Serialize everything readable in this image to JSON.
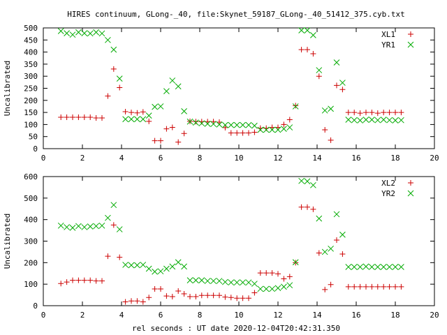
{
  "chart_data": [
    {
      "type": "scatter",
      "title": "HIRES continuum, GLong-_40, file:Skynet_59187_GLong-_40_51412_375.cyb.txt",
      "xlabel": "",
      "ylabel": "Uncalibrated",
      "xlim": [
        0,
        20
      ],
      "ylim": [
        0,
        500
      ],
      "xticks": [
        0,
        2,
        4,
        6,
        8,
        10,
        12,
        14,
        16,
        18,
        20
      ],
      "yticks": [
        0,
        50,
        100,
        150,
        200,
        250,
        300,
        350,
        400,
        450,
        500
      ],
      "legend": "top-right",
      "series": [
        {
          "name": "XL1",
          "marker": "plus",
          "color": "#cc0000",
          "x": [
            0.9,
            1.2,
            1.5,
            1.8,
            2.1,
            2.4,
            2.7,
            3.0,
            3.3,
            3.6,
            3.9,
            4.2,
            4.5,
            4.8,
            5.1,
            5.4,
            5.7,
            6.0,
            6.3,
            6.6,
            6.9,
            7.2,
            7.5,
            7.8,
            8.1,
            8.4,
            8.7,
            9.0,
            9.3,
            9.6,
            9.9,
            10.2,
            10.5,
            10.8,
            11.1,
            11.4,
            11.7,
            12.0,
            12.3,
            12.6,
            12.9,
            13.2,
            13.5,
            13.8,
            14.1,
            14.4,
            14.7,
            15.0,
            15.3,
            15.6,
            15.9,
            16.2,
            16.5,
            16.8,
            17.1,
            17.4,
            17.7,
            18.0,
            18.3
          ],
          "y": [
            130,
            130,
            130,
            130,
            130,
            130,
            127,
            127,
            218,
            330,
            253,
            153,
            150,
            148,
            152,
            113,
            33,
            33,
            82,
            88,
            27,
            63,
            113,
            112,
            112,
            112,
            112,
            110,
            87,
            65,
            65,
            65,
            65,
            68,
            85,
            85,
            88,
            88,
            100,
            120,
            178,
            410,
            410,
            393,
            300,
            78,
            35,
            262,
            245,
            150,
            150,
            147,
            150,
            150,
            147,
            150,
            150,
            150,
            150
          ]
        },
        {
          "name": "YR1",
          "marker": "cross",
          "color": "#00aa00",
          "x": [
            0.9,
            1.2,
            1.5,
            1.8,
            2.1,
            2.4,
            2.7,
            3.0,
            3.3,
            3.6,
            3.9,
            4.2,
            4.5,
            4.8,
            5.1,
            5.4,
            5.7,
            6.0,
            6.3,
            6.6,
            6.9,
            7.2,
            7.5,
            7.8,
            8.1,
            8.4,
            8.7,
            9.0,
            9.3,
            9.6,
            9.9,
            10.2,
            10.5,
            10.8,
            11.1,
            11.4,
            11.7,
            12.0,
            12.3,
            12.6,
            12.9,
            13.2,
            13.5,
            13.8,
            14.1,
            14.4,
            14.7,
            15.0,
            15.3,
            15.6,
            15.9,
            16.2,
            16.5,
            16.8,
            17.1,
            17.4,
            17.7,
            18.0,
            18.3
          ],
          "y": [
            487,
            478,
            472,
            482,
            478,
            477,
            482,
            477,
            450,
            410,
            290,
            122,
            122,
            122,
            122,
            137,
            173,
            175,
            238,
            282,
            258,
            155,
            112,
            108,
            105,
            103,
            102,
            100,
            98,
            98,
            98,
            98,
            98,
            95,
            78,
            78,
            78,
            78,
            82,
            88,
            175,
            490,
            490,
            470,
            325,
            158,
            165,
            357,
            273,
            120,
            118,
            117,
            120,
            120,
            118,
            120,
            118,
            117,
            118
          ]
        }
      ]
    },
    {
      "type": "scatter",
      "title": "",
      "xlabel": "rel seconds : UT date 2020-12-04T20:42:31.350",
      "ylabel": "Uncalibrated",
      "xlim": [
        0,
        20
      ],
      "ylim": [
        0,
        600
      ],
      "xticks": [
        0,
        2,
        4,
        6,
        8,
        10,
        12,
        14,
        16,
        18,
        20
      ],
      "yticks": [
        0,
        100,
        200,
        300,
        400,
        500,
        600
      ],
      "legend": "top-right",
      "series": [
        {
          "name": "XL2",
          "marker": "plus",
          "color": "#cc0000",
          "x": [
            0.9,
            1.2,
            1.5,
            1.8,
            2.1,
            2.4,
            2.7,
            3.0,
            3.3,
            3.6,
            3.9,
            4.2,
            4.5,
            4.8,
            5.1,
            5.4,
            5.7,
            6.0,
            6.3,
            6.6,
            6.9,
            7.2,
            7.5,
            7.8,
            8.1,
            8.4,
            8.7,
            9.0,
            9.3,
            9.6,
            9.9,
            10.2,
            10.5,
            10.8,
            11.1,
            11.4,
            11.7,
            12.0,
            12.3,
            12.6,
            12.9,
            13.2,
            13.5,
            13.8,
            14.1,
            14.4,
            14.7,
            15.0,
            15.3,
            15.6,
            15.9,
            16.2,
            16.5,
            16.8,
            17.1,
            17.4,
            17.7,
            18.0,
            18.3
          ],
          "y": [
            103,
            110,
            118,
            118,
            118,
            118,
            115,
            115,
            230,
            375,
            225,
            18,
            22,
            22,
            18,
            38,
            78,
            78,
            45,
            42,
            68,
            55,
            42,
            42,
            48,
            48,
            48,
            48,
            40,
            38,
            35,
            35,
            35,
            60,
            152,
            152,
            152,
            148,
            125,
            135,
            200,
            458,
            458,
            448,
            245,
            75,
            98,
            305,
            240,
            88,
            88,
            88,
            88,
            88,
            88,
            88,
            88,
            88,
            88
          ]
        },
        {
          "name": "YR2",
          "marker": "cross",
          "color": "#00aa00",
          "x": [
            0.9,
            1.2,
            1.5,
            1.8,
            2.1,
            2.4,
            2.7,
            3.0,
            3.3,
            3.6,
            3.9,
            4.2,
            4.5,
            4.8,
            5.1,
            5.4,
            5.7,
            6.0,
            6.3,
            6.6,
            6.9,
            7.2,
            7.5,
            7.8,
            8.1,
            8.4,
            8.7,
            9.0,
            9.3,
            9.6,
            9.9,
            10.2,
            10.5,
            10.8,
            11.1,
            11.4,
            11.7,
            12.0,
            12.3,
            12.6,
            12.9,
            13.2,
            13.5,
            13.8,
            14.1,
            14.4,
            14.7,
            15.0,
            15.3,
            15.6,
            15.9,
            16.2,
            16.5,
            16.8,
            17.1,
            17.4,
            17.7,
            18.0,
            18.3
          ],
          "y": [
            372,
            365,
            362,
            370,
            365,
            368,
            370,
            372,
            408,
            468,
            355,
            190,
            188,
            188,
            190,
            172,
            158,
            160,
            172,
            182,
            202,
            182,
            118,
            118,
            118,
            115,
            115,
            115,
            110,
            108,
            108,
            108,
            108,
            102,
            78,
            78,
            78,
            82,
            88,
            95,
            202,
            580,
            578,
            560,
            405,
            250,
            265,
            425,
            330,
            180,
            180,
            180,
            182,
            180,
            180,
            180,
            180,
            180,
            180
          ]
        }
      ]
    }
  ]
}
